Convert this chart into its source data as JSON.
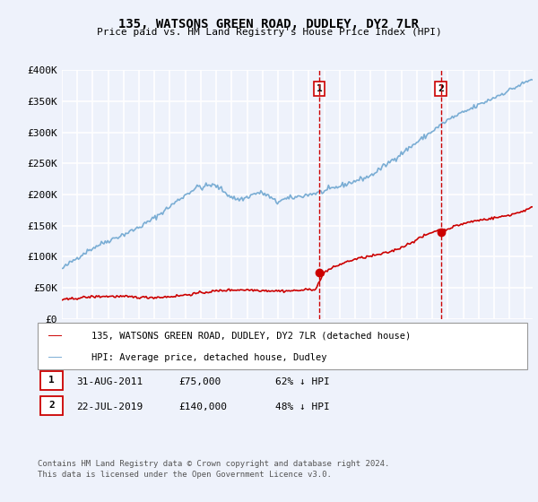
{
  "title": "135, WATSONS GREEN ROAD, DUDLEY, DY2 7LR",
  "subtitle": "Price paid vs. HM Land Registry's House Price Index (HPI)",
  "ylim": [
    0,
    400000
  ],
  "yticks": [
    0,
    50000,
    100000,
    150000,
    200000,
    250000,
    300000,
    350000,
    400000
  ],
  "ytick_labels": [
    "£0",
    "£50K",
    "£100K",
    "£150K",
    "£200K",
    "£250K",
    "£300K",
    "£350K",
    "£400K"
  ],
  "background_color": "#eef2fb",
  "plot_bg_color": "#eef2fb",
  "grid_color": "#ffffff",
  "red_color": "#cc0000",
  "blue_color": "#7aadd4",
  "transaction1": {
    "x": 2011.67,
    "price": 75000,
    "label": "1"
  },
  "transaction2": {
    "x": 2019.55,
    "price": 140000,
    "label": "2"
  },
  "legend_line1": "135, WATSONS GREEN ROAD, DUDLEY, DY2 7LR (detached house)",
  "legend_line2": "HPI: Average price, detached house, Dudley",
  "footnote1": "Contains HM Land Registry data © Crown copyright and database right 2024.",
  "footnote2": "This data is licensed under the Open Government Licence v3.0.",
  "table_rows": [
    {
      "num": "1",
      "date": "31-AUG-2011",
      "price": "£75,000",
      "pct": "62% ↓ HPI"
    },
    {
      "num": "2",
      "date": "22-JUL-2019",
      "price": "£140,000",
      "pct": "48% ↓ HPI"
    }
  ]
}
